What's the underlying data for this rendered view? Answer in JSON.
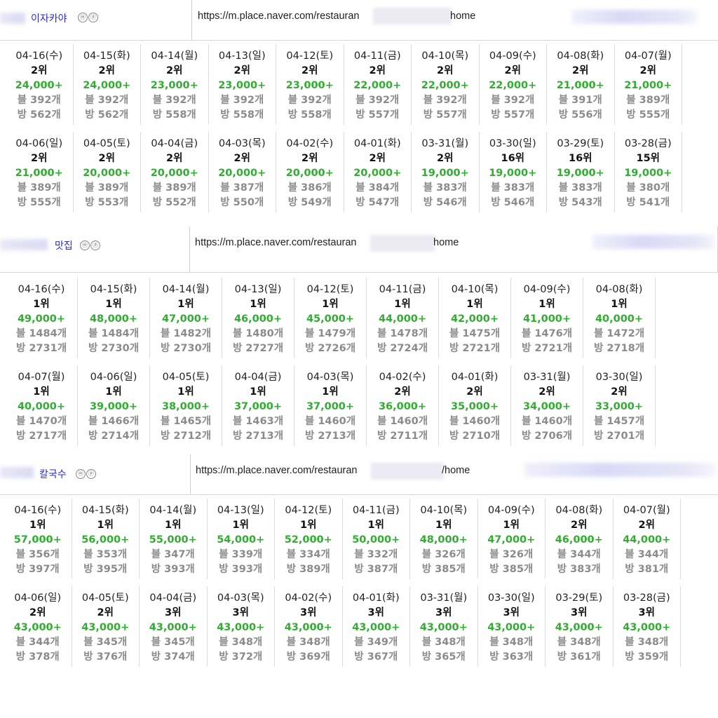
{
  "sections": [
    {
      "name": "이자카야",
      "mp": [
        "ⓜ",
        "ⓟ"
      ],
      "url_start": "https://m.place.naver.com/restauran",
      "url_end": "home",
      "rows": [
        [
          {
            "date": "04-16(수)",
            "rank": "2위",
            "count": "24,000+",
            "blog": "블 392개",
            "bang": "방 562개"
          },
          {
            "date": "04-15(화)",
            "rank": "2위",
            "count": "24,000+",
            "blog": "블 392개",
            "bang": "방 562개"
          },
          {
            "date": "04-14(월)",
            "rank": "2위",
            "count": "23,000+",
            "blog": "블 392개",
            "bang": "방 558개"
          },
          {
            "date": "04-13(일)",
            "rank": "2위",
            "count": "23,000+",
            "blog": "블 392개",
            "bang": "방 558개"
          },
          {
            "date": "04-12(토)",
            "rank": "2위",
            "count": "23,000+",
            "blog": "블 392개",
            "bang": "방 558개"
          },
          {
            "date": "04-11(금)",
            "rank": "2위",
            "count": "22,000+",
            "blog": "블 392개",
            "bang": "방 557개"
          },
          {
            "date": "04-10(목)",
            "rank": "2위",
            "count": "22,000+",
            "blog": "블 392개",
            "bang": "방 557개"
          },
          {
            "date": "04-09(수)",
            "rank": "2위",
            "count": "22,000+",
            "blog": "블 392개",
            "bang": "방 557개"
          },
          {
            "date": "04-08(화)",
            "rank": "2위",
            "count": "21,000+",
            "blog": "블 391개",
            "bang": "방 556개"
          },
          {
            "date": "04-07(월)",
            "rank": "2위",
            "count": "21,000+",
            "blog": "블 389개",
            "bang": "방 555개"
          }
        ],
        [
          {
            "date": "04-06(일)",
            "rank": "2위",
            "count": "21,000+",
            "blog": "블 389개",
            "bang": "방 555개"
          },
          {
            "date": "04-05(토)",
            "rank": "2위",
            "count": "20,000+",
            "blog": "블 389개",
            "bang": "방 553개"
          },
          {
            "date": "04-04(금)",
            "rank": "2위",
            "count": "20,000+",
            "blog": "블 389개",
            "bang": "방 552개"
          },
          {
            "date": "04-03(목)",
            "rank": "2위",
            "count": "20,000+",
            "blog": "블 387개",
            "bang": "방 550개"
          },
          {
            "date": "04-02(수)",
            "rank": "2위",
            "count": "20,000+",
            "blog": "블 386개",
            "bang": "방 549개"
          },
          {
            "date": "04-01(화)",
            "rank": "2위",
            "count": "20,000+",
            "blog": "블 384개",
            "bang": "방 547개"
          },
          {
            "date": "03-31(월)",
            "rank": "2위",
            "count": "19,000+",
            "blog": "블 383개",
            "bang": "방 546개"
          },
          {
            "date": "03-30(일)",
            "rank": "16위",
            "count": "19,000+",
            "blog": "블 383개",
            "bang": "방 546개"
          },
          {
            "date": "03-29(토)",
            "rank": "16위",
            "count": "19,000+",
            "blog": "블 383개",
            "bang": "방 543개"
          },
          {
            "date": "03-28(금)",
            "rank": "15위",
            "count": "19,000+",
            "blog": "블 380개",
            "bang": "방 541개"
          }
        ]
      ]
    },
    {
      "name": "맛집",
      "mp": [
        "ⓜ",
        "ⓟ"
      ],
      "url_start": "https://m.place.naver.com/restauran",
      "url_end": "home",
      "rows": [
        [
          {
            "date": "04-16(수)",
            "rank": "1위",
            "count": "49,000+",
            "blog": "블 1484개",
            "bang": "방 2731개"
          },
          {
            "date": "04-15(화)",
            "rank": "1위",
            "count": "48,000+",
            "blog": "블 1484개",
            "bang": "방 2730개"
          },
          {
            "date": "04-14(월)",
            "rank": "1위",
            "count": "47,000+",
            "blog": "블 1482개",
            "bang": "방 2730개"
          },
          {
            "date": "04-13(일)",
            "rank": "1위",
            "count": "46,000+",
            "blog": "블 1480개",
            "bang": "방 2727개"
          },
          {
            "date": "04-12(토)",
            "rank": "1위",
            "count": "45,000+",
            "blog": "블 1479개",
            "bang": "방 2726개"
          },
          {
            "date": "04-11(금)",
            "rank": "1위",
            "count": "44,000+",
            "blog": "블 1478개",
            "bang": "방 2724개"
          },
          {
            "date": "04-10(목)",
            "rank": "1위",
            "count": "42,000+",
            "blog": "블 1475개",
            "bang": "방 2721개"
          },
          {
            "date": "04-09(수)",
            "rank": "1위",
            "count": "41,000+",
            "blog": "블 1476개",
            "bang": "방 2721개"
          },
          {
            "date": "04-08(화)",
            "rank": "1위",
            "count": "40,000+",
            "blog": "블 1472개",
            "bang": "방 2718개"
          }
        ],
        [
          {
            "date": "04-07(월)",
            "rank": "1위",
            "count": "40,000+",
            "blog": "블 1470개",
            "bang": "방 2717개"
          },
          {
            "date": "04-06(일)",
            "rank": "1위",
            "count": "39,000+",
            "blog": "블 1466개",
            "bang": "방 2714개"
          },
          {
            "date": "04-05(토)",
            "rank": "1위",
            "count": "38,000+",
            "blog": "블 1465개",
            "bang": "방 2712개"
          },
          {
            "date": "04-04(금)",
            "rank": "1위",
            "count": "37,000+",
            "blog": "블 1463개",
            "bang": "방 2713개"
          },
          {
            "date": "04-03(목)",
            "rank": "1위",
            "count": "37,000+",
            "blog": "블 1460개",
            "bang": "방 2713개"
          },
          {
            "date": "04-02(수)",
            "rank": "2위",
            "count": "36,000+",
            "blog": "블 1460개",
            "bang": "방 2711개"
          },
          {
            "date": "04-01(화)",
            "rank": "2위",
            "count": "35,000+",
            "blog": "블 1460개",
            "bang": "방 2710개"
          },
          {
            "date": "03-31(월)",
            "rank": "2위",
            "count": "34,000+",
            "blog": "블 1460개",
            "bang": "방 2706개"
          },
          {
            "date": "03-30(일)",
            "rank": "2위",
            "count": "33,000+",
            "blog": "블 1457개",
            "bang": "방 2701개"
          }
        ]
      ]
    },
    {
      "name": "칼국수",
      "mp": [
        "ⓜ",
        "ⓟ"
      ],
      "url_start": "https://m.place.naver.com/restauran",
      "url_end": "/home",
      "rows": [
        [
          {
            "date": "04-16(수)",
            "rank": "1위",
            "count": "57,000+",
            "blog": "블 356개",
            "bang": "방 397개"
          },
          {
            "date": "04-15(화)",
            "rank": "1위",
            "count": "56,000+",
            "blog": "블 353개",
            "bang": "방 395개"
          },
          {
            "date": "04-14(월)",
            "rank": "1위",
            "count": "55,000+",
            "blog": "블 347개",
            "bang": "방 393개"
          },
          {
            "date": "04-13(일)",
            "rank": "1위",
            "count": "54,000+",
            "blog": "블 339개",
            "bang": "방 393개"
          },
          {
            "date": "04-12(토)",
            "rank": "1위",
            "count": "52,000+",
            "blog": "블 334개",
            "bang": "방 389개"
          },
          {
            "date": "04-11(금)",
            "rank": "1위",
            "count": "50,000+",
            "blog": "블 332개",
            "bang": "방 387개"
          },
          {
            "date": "04-10(목)",
            "rank": "1위",
            "count": "48,000+",
            "blog": "블 326개",
            "bang": "방 385개"
          },
          {
            "date": "04-09(수)",
            "rank": "1위",
            "count": "47,000+",
            "blog": "블 326개",
            "bang": "방 385개"
          },
          {
            "date": "04-08(화)",
            "rank": "2위",
            "count": "46,000+",
            "blog": "블 344개",
            "bang": "방 383개"
          },
          {
            "date": "04-07(월)",
            "rank": "2위",
            "count": "44,000+",
            "blog": "블 344개",
            "bang": "방 381개"
          }
        ],
        [
          {
            "date": "04-06(일)",
            "rank": "2위",
            "count": "43,000+",
            "blog": "블 344개",
            "bang": "방 378개"
          },
          {
            "date": "04-05(토)",
            "rank": "2위",
            "count": "43,000+",
            "blog": "블 345개",
            "bang": "방 376개"
          },
          {
            "date": "04-04(금)",
            "rank": "3위",
            "count": "43,000+",
            "blog": "블 345개",
            "bang": "방 374개"
          },
          {
            "date": "04-03(목)",
            "rank": "3위",
            "count": "43,000+",
            "blog": "블 348개",
            "bang": "방 372개"
          },
          {
            "date": "04-02(수)",
            "rank": "3위",
            "count": "43,000+",
            "blog": "블 348개",
            "bang": "방 369개"
          },
          {
            "date": "04-01(화)",
            "rank": "3위",
            "count": "43,000+",
            "blog": "블 349개",
            "bang": "방 367개"
          },
          {
            "date": "03-31(월)",
            "rank": "3위",
            "count": "43,000+",
            "blog": "블 348개",
            "bang": "방 365개"
          },
          {
            "date": "03-30(일)",
            "rank": "3위",
            "count": "43,000+",
            "blog": "블 348개",
            "bang": "방 363개"
          },
          {
            "date": "03-29(토)",
            "rank": "3위",
            "count": "43,000+",
            "blog": "블 348개",
            "bang": "방 361개"
          },
          {
            "date": "03-28(금)",
            "rank": "3위",
            "count": "43,000+",
            "blog": "블 348개",
            "bang": "방 359개"
          }
        ]
      ]
    }
  ],
  "colors": {
    "count": "#2fae2f",
    "blog": "#8b8b8b",
    "bang": "#8b8b8b",
    "name": "#2a2ad8"
  }
}
